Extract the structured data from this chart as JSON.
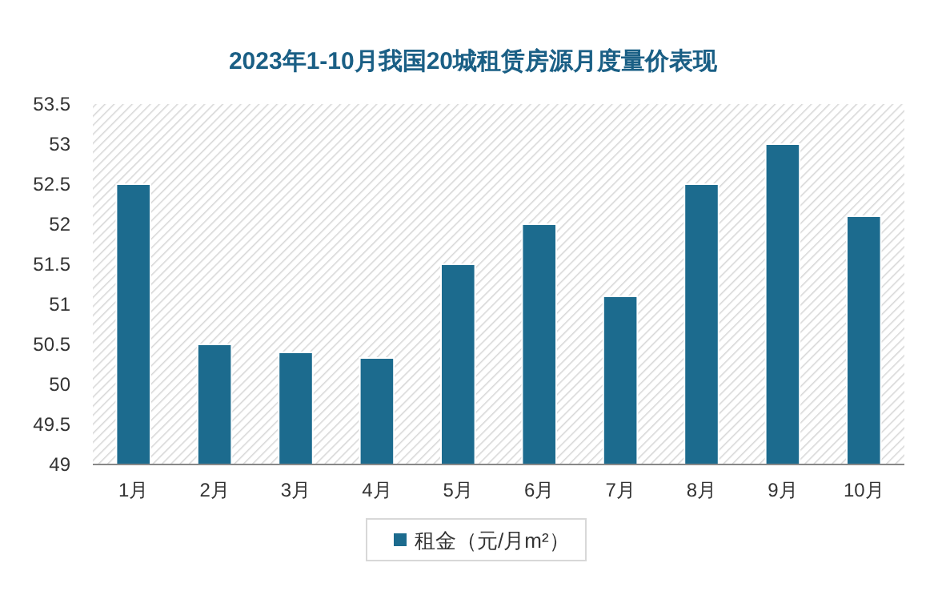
{
  "chart_data": {
    "type": "bar",
    "title": "2023年1-10月我国20城租赁房源月度量价表现",
    "categories": [
      "1月",
      "2月",
      "3月",
      "4月",
      "5月",
      "6月",
      "7月",
      "8月",
      "9月",
      "10月"
    ],
    "series": [
      {
        "name": "租金（元/月m²）",
        "color": "#1c6b8e",
        "values": [
          52.5,
          50.5,
          50.4,
          50.33,
          51.5,
          52.0,
          51.1,
          52.5,
          53.0,
          52.1
        ]
      }
    ],
    "ylim": [
      49,
      53.5
    ],
    "yticks": [
      49,
      {
        "value": 49.5,
        "label": "49.5"
      },
      50,
      {
        "value": 50.5,
        "label": "50.5"
      },
      51,
      {
        "value": 51.5,
        "label": "51.5"
      },
      52,
      {
        "value": 52.5,
        "label": "52.5"
      },
      53,
      {
        "value": 53.5,
        "label": "53.5"
      }
    ],
    "grid": false,
    "legend": "bottom"
  }
}
